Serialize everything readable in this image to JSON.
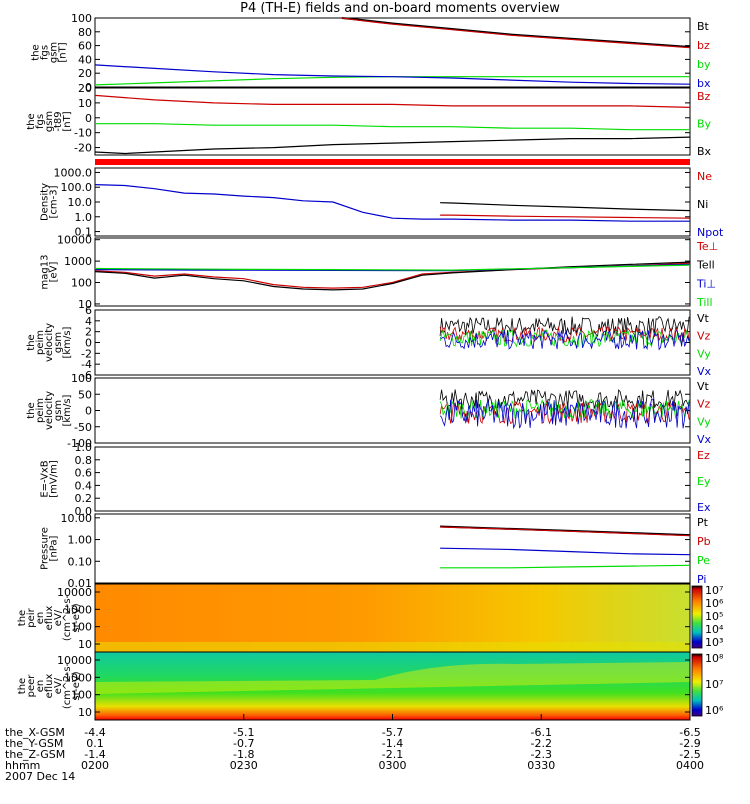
{
  "title": "P4 (TH-E) fields and on-board moments overview",
  "colors": {
    "black": "#000000",
    "red": "#cc0000",
    "green": "#00dd00",
    "blue": "#0000cc",
    "bar": "#ff0000"
  },
  "chart_data": [
    {
      "type": "line",
      "ylabel": [
        "the",
        "fgs",
        "gsm",
        "[nT]"
      ],
      "yticks": [
        "100",
        "80",
        "60",
        "40",
        "20",
        "0"
      ],
      "ylim": [
        0,
        100
      ],
      "series": [
        {
          "name": "Bt",
          "color": "#000000",
          "x": [
            0.415,
            0.45,
            0.5,
            0.6,
            0.7,
            0.8,
            0.9,
            1.0
          ],
          "y": [
            100,
            97,
            92,
            84,
            76,
            70,
            64,
            58
          ]
        },
        {
          "name": "bz",
          "color": "#cc0000",
          "x": [
            0.415,
            0.45,
            0.5,
            0.6,
            0.7,
            0.8,
            0.9,
            1.0
          ],
          "y": [
            100,
            96,
            91,
            83,
            75,
            69,
            63,
            57
          ]
        },
        {
          "name": "by",
          "color": "#00dd00",
          "x": [
            0,
            0.1,
            0.2,
            0.3,
            0.4,
            0.5,
            0.6,
            0.7,
            0.8,
            0.9,
            1.0
          ],
          "y": [
            3,
            6,
            9,
            12,
            14,
            15,
            15,
            15,
            15,
            15,
            15
          ]
        },
        {
          "name": "bx",
          "color": "#0000cc",
          "x": [
            0,
            0.1,
            0.2,
            0.3,
            0.4,
            0.5,
            0.6,
            0.7,
            0.8,
            0.9,
            1.0
          ],
          "y": [
            32,
            27,
            22,
            18,
            16,
            15,
            13,
            10,
            7,
            5,
            4
          ]
        }
      ]
    },
    {
      "type": "line",
      "ylabel": [
        "the",
        "fgs",
        "gsm",
        "-t89",
        "[nT]"
      ],
      "yticks": [
        "20",
        "10",
        "0",
        "-10",
        "-20"
      ],
      "ylim": [
        -25,
        20
      ],
      "series": [
        {
          "name": "Bz",
          "color": "#cc0000",
          "x": [
            0,
            0.1,
            0.2,
            0.3,
            0.4,
            0.5,
            0.6,
            0.7,
            0.8,
            0.9,
            1.0
          ],
          "y": [
            15,
            12,
            10,
            9,
            9,
            9,
            8,
            8,
            8,
            8,
            7
          ]
        },
        {
          "name": "By",
          "color": "#00dd00",
          "x": [
            0,
            0.1,
            0.2,
            0.3,
            0.4,
            0.5,
            0.6,
            0.7,
            0.8,
            0.9,
            1.0
          ],
          "y": [
            -4,
            -4,
            -5,
            -5,
            -5,
            -6,
            -6,
            -7,
            -7,
            -8,
            -8
          ]
        },
        {
          "name": "Bx",
          "color": "#000000",
          "x": [
            0,
            0.05,
            0.1,
            0.2,
            0.3,
            0.4,
            0.5,
            0.6,
            0.7,
            0.8,
            0.9,
            1.0
          ],
          "y": [
            -23,
            -24,
            -23,
            -21,
            -20,
            -18,
            -17,
            -16,
            -15,
            -14,
            -14,
            -13
          ]
        }
      ]
    },
    {
      "type": "line",
      "ylabel": [
        "Density",
        "[cm-3]"
      ],
      "scale": "log",
      "yticks": [
        "1000.0",
        "100.0",
        "10.0",
        "1.0",
        "0.1"
      ],
      "ylim": [
        0.05,
        2000
      ],
      "series": [
        {
          "name": "Ne",
          "color": "#cc0000",
          "x": [
            0.58,
            0.6,
            0.7,
            0.8,
            0.9,
            1.0
          ],
          "y": [
            1.3,
            1.3,
            1.1,
            1.0,
            0.9,
            0.8
          ]
        },
        {
          "name": "Ni",
          "color": "#000000",
          "x": [
            0.58,
            0.6,
            0.7,
            0.8,
            0.9,
            1.0
          ],
          "y": [
            9,
            8.5,
            6,
            4.5,
            3.3,
            2.6
          ]
        },
        {
          "name": "Npot",
          "color": "#0000cc",
          "x": [
            0,
            0.05,
            0.1,
            0.15,
            0.2,
            0.25,
            0.3,
            0.35,
            0.4,
            0.45,
            0.5,
            0.55,
            0.6,
            0.7,
            0.8,
            0.9,
            1.0
          ],
          "y": [
            150,
            130,
            80,
            40,
            35,
            25,
            20,
            12,
            10,
            2,
            0.8,
            0.7,
            0.7,
            0.6,
            0.6,
            0.5,
            0.5
          ]
        }
      ]
    },
    {
      "type": "line",
      "ylabel": [
        "mag13",
        "[eV]"
      ],
      "scale": "log",
      "yticks": [
        "10000",
        "1000",
        "100",
        "10"
      ],
      "ylim": [
        8,
        12000
      ],
      "series": [
        {
          "name": "Te⊥",
          "color": "#cc0000",
          "x": [
            0,
            0.05,
            0.1,
            0.15,
            0.2,
            0.25,
            0.3,
            0.35,
            0.4,
            0.45,
            0.5,
            0.55,
            0.6,
            0.7,
            0.8,
            0.9,
            1.0
          ],
          "y": [
            350,
            300,
            200,
            250,
            180,
            150,
            80,
            60,
            55,
            60,
            100,
            250,
            300,
            400,
            500,
            600,
            800
          ]
        },
        {
          "name": "Tell",
          "color": "#000000",
          "x": [
            0,
            0.05,
            0.1,
            0.15,
            0.2,
            0.25,
            0.3,
            0.35,
            0.4,
            0.45,
            0.5,
            0.55,
            0.6,
            0.7,
            0.8,
            0.9,
            1.0
          ],
          "y": [
            320,
            270,
            160,
            220,
            150,
            120,
            65,
            50,
            45,
            50,
            90,
            220,
            280,
            400,
            550,
            700,
            900
          ]
        },
        {
          "name": "Ti⊥",
          "color": "#0000cc",
          "x": [
            0,
            0.2,
            0.4,
            0.6,
            0.8,
            1.0
          ],
          "y": [
            400,
            380,
            370,
            360,
            500,
            700
          ]
        },
        {
          "name": "Till",
          "color": "#00dd00",
          "x": [
            0,
            0.2,
            0.4,
            0.6,
            0.8,
            1.0
          ],
          "y": [
            450,
            420,
            400,
            380,
            500,
            650
          ]
        }
      ]
    },
    {
      "type": "line",
      "ylabel": [
        "the",
        "peim",
        "velocity",
        "gsm",
        "[km/s]"
      ],
      "yticks": [
        "6",
        "4",
        "2",
        "0",
        "-2",
        "-4",
        "-6"
      ],
      "ylim": [
        -6,
        6
      ],
      "noise_start": 0.58,
      "series": [
        {
          "name": "Vt",
          "color": "#000000",
          "base": 3.0,
          "amp": 1.8
        },
        {
          "name": "Vz",
          "color": "#cc0000",
          "base": 1.5,
          "amp": 1.4
        },
        {
          "name": "Vy",
          "color": "#00dd00",
          "base": 0.8,
          "amp": 1.6
        },
        {
          "name": "Vx",
          "color": "#0000cc",
          "base": 0.5,
          "amp": 1.8
        }
      ]
    },
    {
      "type": "line",
      "ylabel": [
        "the",
        "peim",
        "velocity",
        "gsm",
        "[km/s]"
      ],
      "yticks": [
        "100",
        "50",
        "0",
        "-50",
        "-100"
      ],
      "ylim": [
        -100,
        100
      ],
      "noise_start": 0.58,
      "series": [
        {
          "name": "Vt",
          "color": "#000000",
          "base": 35,
          "amp": 30
        },
        {
          "name": "Vz",
          "color": "#cc0000",
          "base": -5,
          "amp": 35
        },
        {
          "name": "Vy",
          "color": "#00dd00",
          "base": 5,
          "amp": 30
        },
        {
          "name": "Vx",
          "color": "#0000cc",
          "base": -10,
          "amp": 45
        }
      ]
    },
    {
      "type": "line",
      "ylabel": [
        "E=-VxB",
        "[mV/m]"
      ],
      "yticks": [
        "1.0",
        "0.8",
        "0.6",
        "0.4",
        "0.2",
        "0.0"
      ],
      "ylim": [
        0,
        1
      ],
      "series": [
        {
          "name": "Ez",
          "color": "#cc0000"
        },
        {
          "name": "Ey",
          "color": "#00dd00"
        },
        {
          "name": "Ex",
          "color": "#0000cc"
        }
      ]
    },
    {
      "type": "line",
      "ylabel": [
        "Pressure",
        "[nPa]"
      ],
      "scale": "log",
      "yticks": [
        "10.00",
        "1.00",
        "0.10",
        "0.01"
      ],
      "ylim": [
        0.01,
        15
      ],
      "series": [
        {
          "name": "Pt",
          "color": "#000000",
          "x": [
            0.58,
            0.7,
            0.8,
            0.9,
            1.0
          ],
          "y": [
            4.0,
            3.1,
            2.5,
            2.0,
            1.6
          ]
        },
        {
          "name": "Pb",
          "color": "#cc0000",
          "x": [
            0.58,
            0.7,
            0.8,
            0.9,
            1.0
          ],
          "y": [
            3.8,
            3.0,
            2.4,
            1.9,
            1.5
          ]
        },
        {
          "name": "Pe",
          "color": "#00dd00",
          "x": [
            0.58,
            0.7,
            0.8,
            0.9,
            1.0
          ],
          "y": [
            0.05,
            0.05,
            0.055,
            0.06,
            0.065
          ]
        },
        {
          "name": "Pi",
          "color": "#0000cc",
          "x": [
            0.58,
            0.7,
            0.8,
            0.9,
            1.0
          ],
          "y": [
            0.4,
            0.35,
            0.28,
            0.22,
            0.2
          ]
        }
      ]
    },
    {
      "type": "heatmap",
      "ylabel": [
        "the",
        "peir",
        "en",
        "eflux",
        "eV/",
        "(cm^2-s-",
        "sr-eV)"
      ],
      "yticks": [
        "10000",
        "1000",
        "100",
        "10"
      ],
      "colorbar": {
        "labels": [
          "10⁷",
          "10⁶",
          "10⁵",
          "10⁴",
          "10³"
        ]
      }
    },
    {
      "type": "heatmap",
      "ylabel": [
        "the",
        "peer",
        "en",
        "eflux",
        "eV/",
        "(cm^2-s-",
        "sr-eV)"
      ],
      "yticks": [
        "10000",
        "1000",
        "100",
        "10"
      ],
      "colorbar": {
        "labels": [
          "10⁸",
          "10⁷",
          "10⁶"
        ]
      }
    }
  ],
  "ephemeris": {
    "labels": [
      "the_X-GSM",
      "the_Y-GSM",
      "the_Z-GSM",
      "hhmm",
      "2007 Dec 14"
    ],
    "columns": [
      {
        "x": "-4.4",
        "y": "0.1",
        "z": "-1.4",
        "t": "0200"
      },
      {
        "x": "-5.1",
        "y": "-0.7",
        "z": "-1.8",
        "t": "0230"
      },
      {
        "x": "-5.7",
        "y": "-1.4",
        "z": "-2.1",
        "t": "0300"
      },
      {
        "x": "-6.1",
        "y": "-2.2",
        "z": "-2.3",
        "t": "0330"
      },
      {
        "x": "-6.5",
        "y": "-2.9",
        "z": "-2.5",
        "t": "0400"
      }
    ]
  }
}
